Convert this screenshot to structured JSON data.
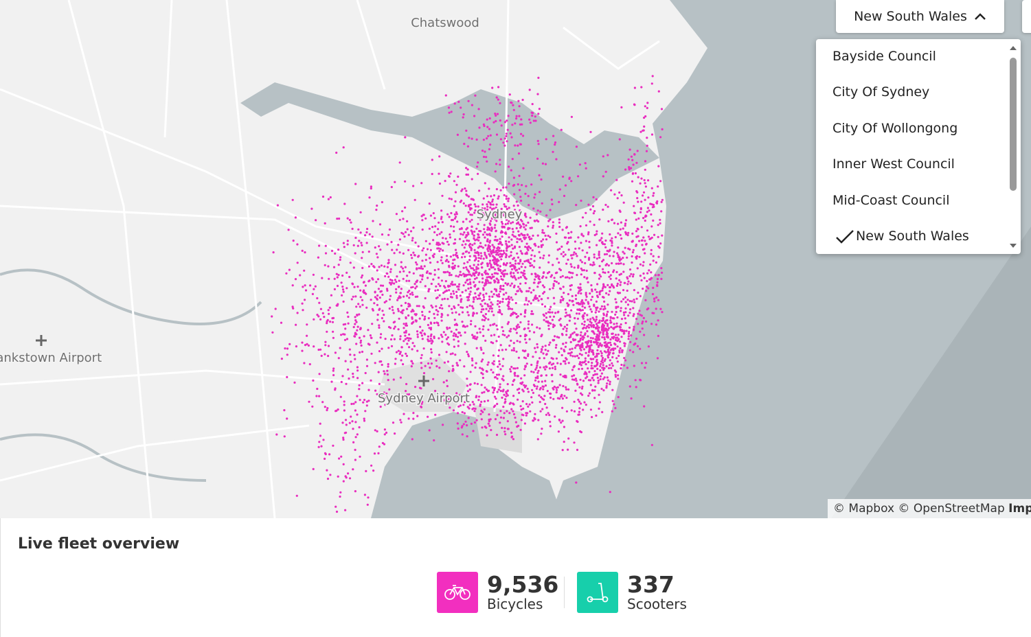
{
  "map": {
    "labels": {
      "chatswood": "Chatswood",
      "sydney": "Sydney",
      "bankstown": "Bankstown Airport",
      "sydney_airport": "Sydney Airport"
    },
    "attribution": {
      "mapbox": "© Mapbox",
      "osm": "© OpenStreetMap",
      "improve": "Improve this map"
    }
  },
  "region_selector": {
    "selected": "New South Wales",
    "options": [
      "Bayside Council",
      "City Of Sydney",
      "City Of Wollongong",
      "Inner West Council",
      "Mid-Coast Council",
      "New South Wales"
    ]
  },
  "fleet": {
    "title": "Live fleet overview",
    "stats": [
      {
        "value": "9,536",
        "label": "Bicycles"
      },
      {
        "value": "337",
        "label": "Scooters"
      }
    ]
  }
}
